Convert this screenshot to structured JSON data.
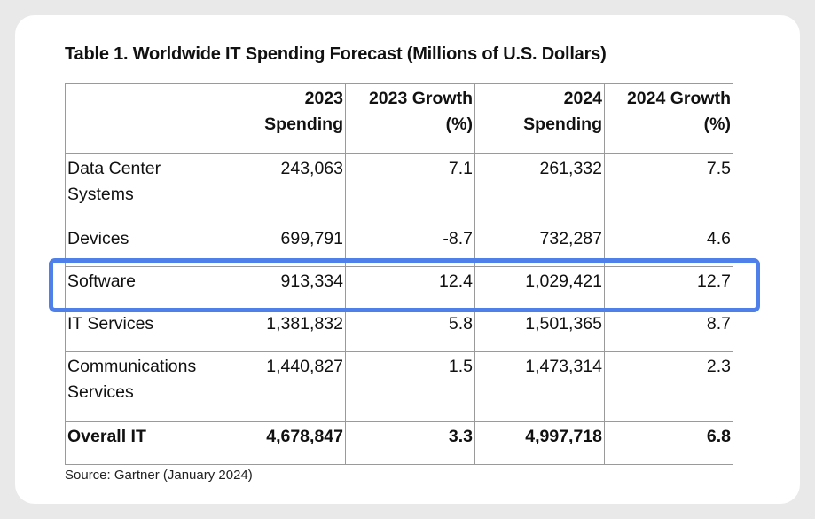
{
  "title": "Table 1. Worldwide IT Spending Forecast (Millions of U.S. Dollars)",
  "headers": {
    "spending_2023": [
      "2023",
      "Spending"
    ],
    "growth_2023": [
      "2023 Growth",
      "(%)"
    ],
    "spending_2024": [
      "2024",
      "Spending"
    ],
    "growth_2024": [
      "2024 Growth",
      "(%)"
    ]
  },
  "rows": [
    {
      "label": [
        "Data Center",
        "Systems"
      ],
      "spending_2023": "243,063",
      "growth_2023": "7.1",
      "spending_2024": "261,332",
      "growth_2024": "7.5"
    },
    {
      "label": [
        "Devices"
      ],
      "spending_2023": "699,791",
      "growth_2023": "-8.7",
      "spending_2024": "732,287",
      "growth_2024": "4.6"
    },
    {
      "label": [
        "Software"
      ],
      "spending_2023": "913,334",
      "growth_2023": "12.4",
      "spending_2024": "1,029,421",
      "growth_2024": "12.7"
    },
    {
      "label": [
        "IT Services"
      ],
      "spending_2023": "1,381,832",
      "growth_2023": "5.8",
      "spending_2024": "1,501,365",
      "growth_2024": "8.7"
    },
    {
      "label": [
        "Communications",
        "Services"
      ],
      "spending_2023": "1,440,827",
      "growth_2023": "1.5",
      "spending_2024": "1,473,314",
      "growth_2024": "2.3"
    },
    {
      "label": [
        "Overall IT"
      ],
      "spending_2023": "4,678,847",
      "growth_2023": "3.3",
      "spending_2024": "4,997,718",
      "growth_2024": "6.8"
    }
  ],
  "source": "Source: Gartner (January 2024)",
  "highlight": {
    "row": "Software",
    "color": "#4f7fe8"
  }
}
